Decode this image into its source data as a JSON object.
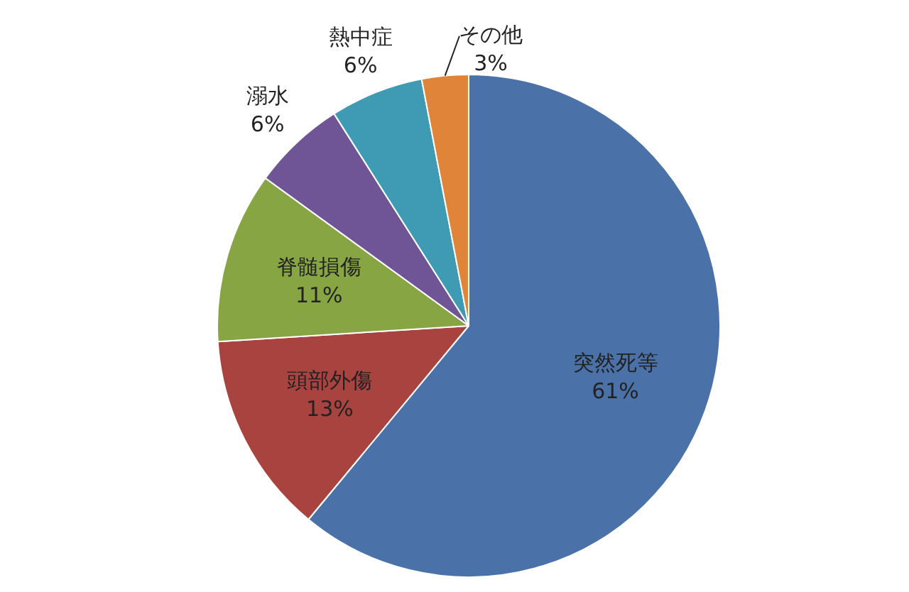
{
  "chart_data": {
    "type": "pie",
    "categories": [
      "突然死等",
      "頭部外傷",
      "脊髄損傷",
      "溺水",
      "熱中症",
      "その他"
    ],
    "values": [
      61,
      13,
      11,
      6,
      6,
      3
    ],
    "colors": [
      "#4a72a8",
      "#a84340",
      "#88a544",
      "#6f5596",
      "#3f9bb3",
      "#e0843a"
    ],
    "value_labels": [
      "61%",
      "13%",
      "11%",
      "6%",
      "6%",
      "3%"
    ],
    "legend": false
  }
}
